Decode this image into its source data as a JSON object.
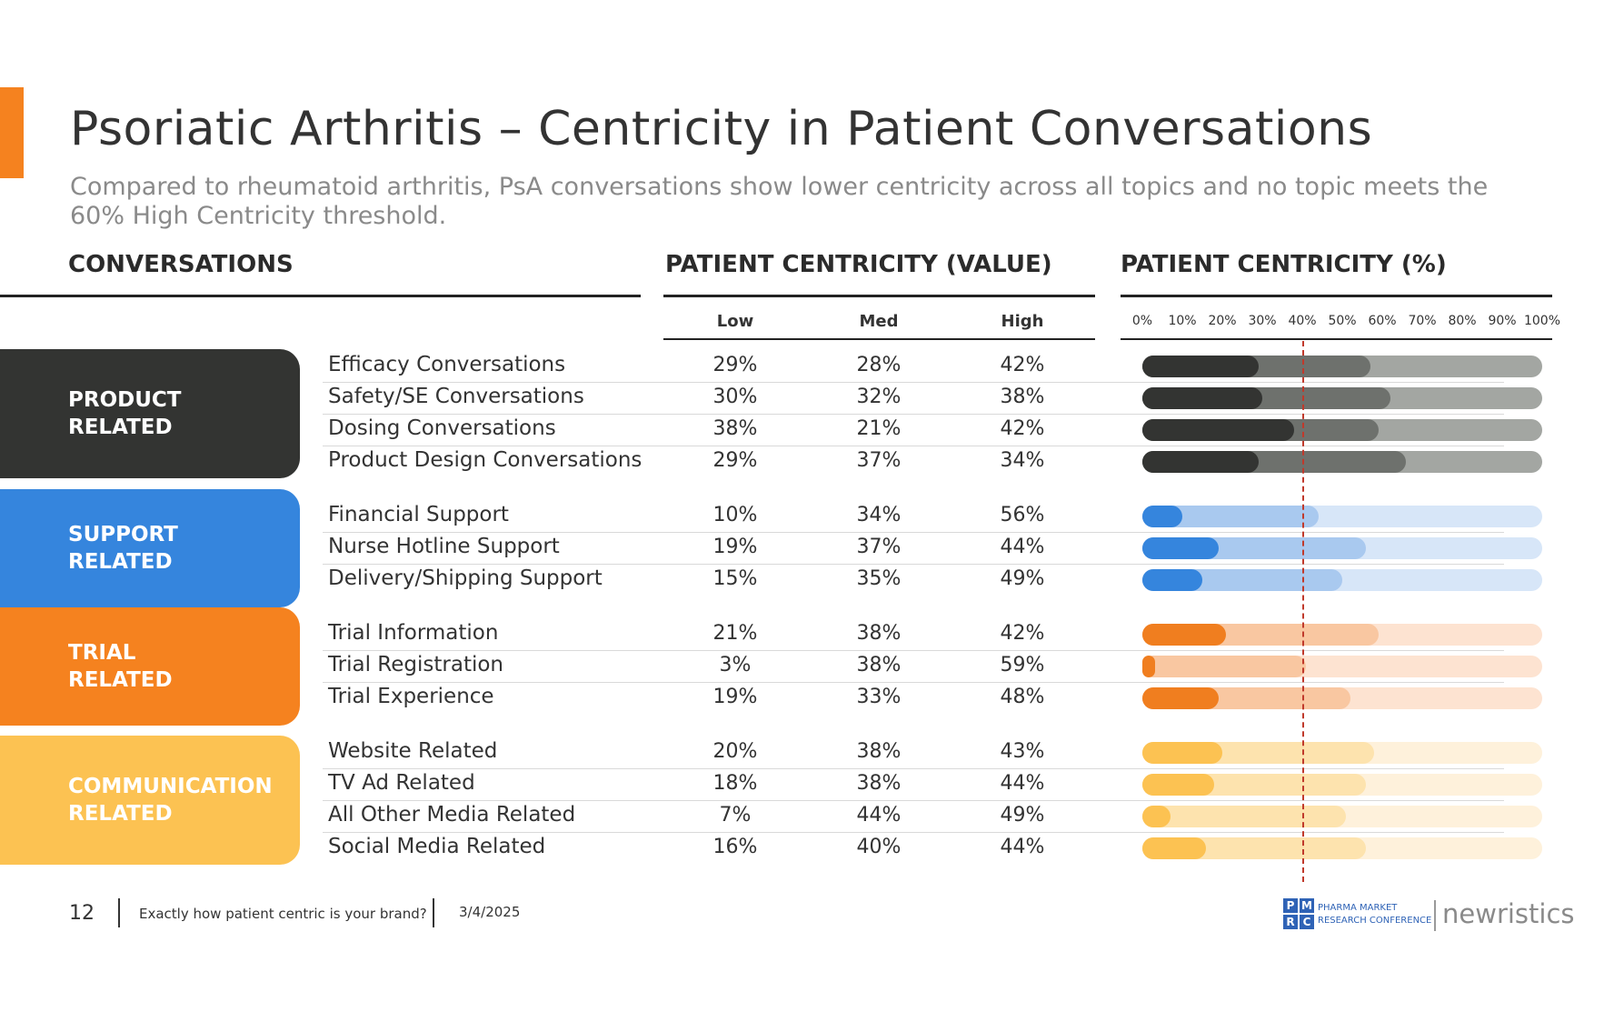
{
  "title": "Psoriatic Arthritis – Centricity in Patient Conversations",
  "subtitle": "Compared to rheumatoid arthritis, PsA conversations show lower centricity across all topics and no topic meets the 60% High Centricity threshold.",
  "headers": {
    "conversations": "CONVERSATIONS",
    "value": "PATIENT CENTRICITY (VALUE)",
    "percent": "PATIENT CENTRICITY (%)"
  },
  "columns": [
    "Low",
    "Med",
    "High"
  ],
  "axis_ticks": [
    "0%",
    "10%",
    "20%",
    "30%",
    "40%",
    "50%",
    "60%",
    "70%",
    "80%",
    "90%",
    "100%"
  ],
  "groups": [
    {
      "label": "PRODUCT\nRELATED",
      "colors": {
        "box": "#333432",
        "low": "#333432",
        "med": "#6e716d",
        "high": "#a3a6a2"
      },
      "rows": [
        {
          "label": "Efficacy Conversations",
          "low": "29%",
          "med": "28%",
          "high": "42%"
        },
        {
          "label": "Safety/SE Conversations",
          "low": "30%",
          "med": "32%",
          "high": "38%"
        },
        {
          "label": "Dosing Conversations",
          "low": "38%",
          "med": "21%",
          "high": "42%"
        },
        {
          "label": "Product Design Conversations",
          "low": "29%",
          "med": "37%",
          "high": "34%"
        }
      ]
    },
    {
      "label": "SUPPORT\nRELATED",
      "colors": {
        "box": "#3585dd",
        "low": "#3585dd",
        "med": "#a9c9ef",
        "high": "#d7e6f8"
      },
      "rows": [
        {
          "label": "Financial Support",
          "low": "10%",
          "med": "34%",
          "high": "56%"
        },
        {
          "label": "Nurse Hotline Support",
          "low": "19%",
          "med": "37%",
          "high": "44%"
        },
        {
          "label": "Delivery/Shipping Support",
          "low": "15%",
          "med": "35%",
          "high": "49%"
        }
      ]
    },
    {
      "label": "TRIAL\nRELATED",
      "colors": {
        "box": "#f5821f",
        "low": "#f07e1f",
        "med": "#f9c7a1",
        "high": "#fde3d1"
      },
      "rows": [
        {
          "label": "Trial Information",
          "low": "21%",
          "med": "38%",
          "high": "42%"
        },
        {
          "label": "Trial Registration",
          "low": "3%",
          "med": "38%",
          "high": "59%"
        },
        {
          "label": "Trial Experience",
          "low": "19%",
          "med": "33%",
          "high": "48%"
        }
      ]
    },
    {
      "label": "COMMUNICATION\nRELATED",
      "colors": {
        "box": "#fcc252",
        "low": "#fcc252",
        "med": "#fde3ae",
        "high": "#fef1db"
      },
      "rows": [
        {
          "label": "Website Related",
          "low": "20%",
          "med": "38%",
          "high": "43%"
        },
        {
          "label": "TV Ad Related",
          "low": "18%",
          "med": "38%",
          "high": "44%"
        },
        {
          "label": "All Other Media Related",
          "low": "7%",
          "med": "44%",
          "high": "49%"
        },
        {
          "label": "Social Media Related",
          "low": "16%",
          "med": "40%",
          "high": "44%"
        }
      ]
    }
  ],
  "chart_data": {
    "type": "bar",
    "orientation": "horizontal",
    "stacked": true,
    "title": "PATIENT CENTRICITY (%)",
    "xlim": [
      0,
      100
    ],
    "reference_line": 40,
    "categories": [
      "Efficacy Conversations",
      "Safety/SE Conversations",
      "Dosing Conversations",
      "Product Design Conversations",
      "Financial Support",
      "Nurse Hotline Support",
      "Delivery/Shipping Support",
      "Trial Information",
      "Trial Registration",
      "Trial Experience",
      "Website Related",
      "TV Ad Related",
      "All Other Media Related",
      "Social Media Related"
    ],
    "series": [
      {
        "name": "Low",
        "values": [
          29,
          30,
          38,
          29,
          10,
          19,
          15,
          21,
          3,
          19,
          20,
          18,
          7,
          16
        ]
      },
      {
        "name": "Med",
        "values": [
          28,
          32,
          21,
          37,
          34,
          37,
          35,
          38,
          38,
          33,
          38,
          38,
          44,
          40
        ]
      },
      {
        "name": "High",
        "values": [
          42,
          38,
          42,
          34,
          56,
          44,
          49,
          42,
          59,
          48,
          43,
          44,
          49,
          44
        ]
      }
    ]
  },
  "footer": {
    "page": "12",
    "tagline": "Exactly how patient centric is your brand?",
    "date": "3/4/2025",
    "logo1_letters": [
      "P",
      "M",
      "R",
      "C"
    ],
    "logo1_line1": "PHARMA MARKET",
    "logo1_line2": "RESEARCH CONFERENCE",
    "logo2": "newristics"
  }
}
